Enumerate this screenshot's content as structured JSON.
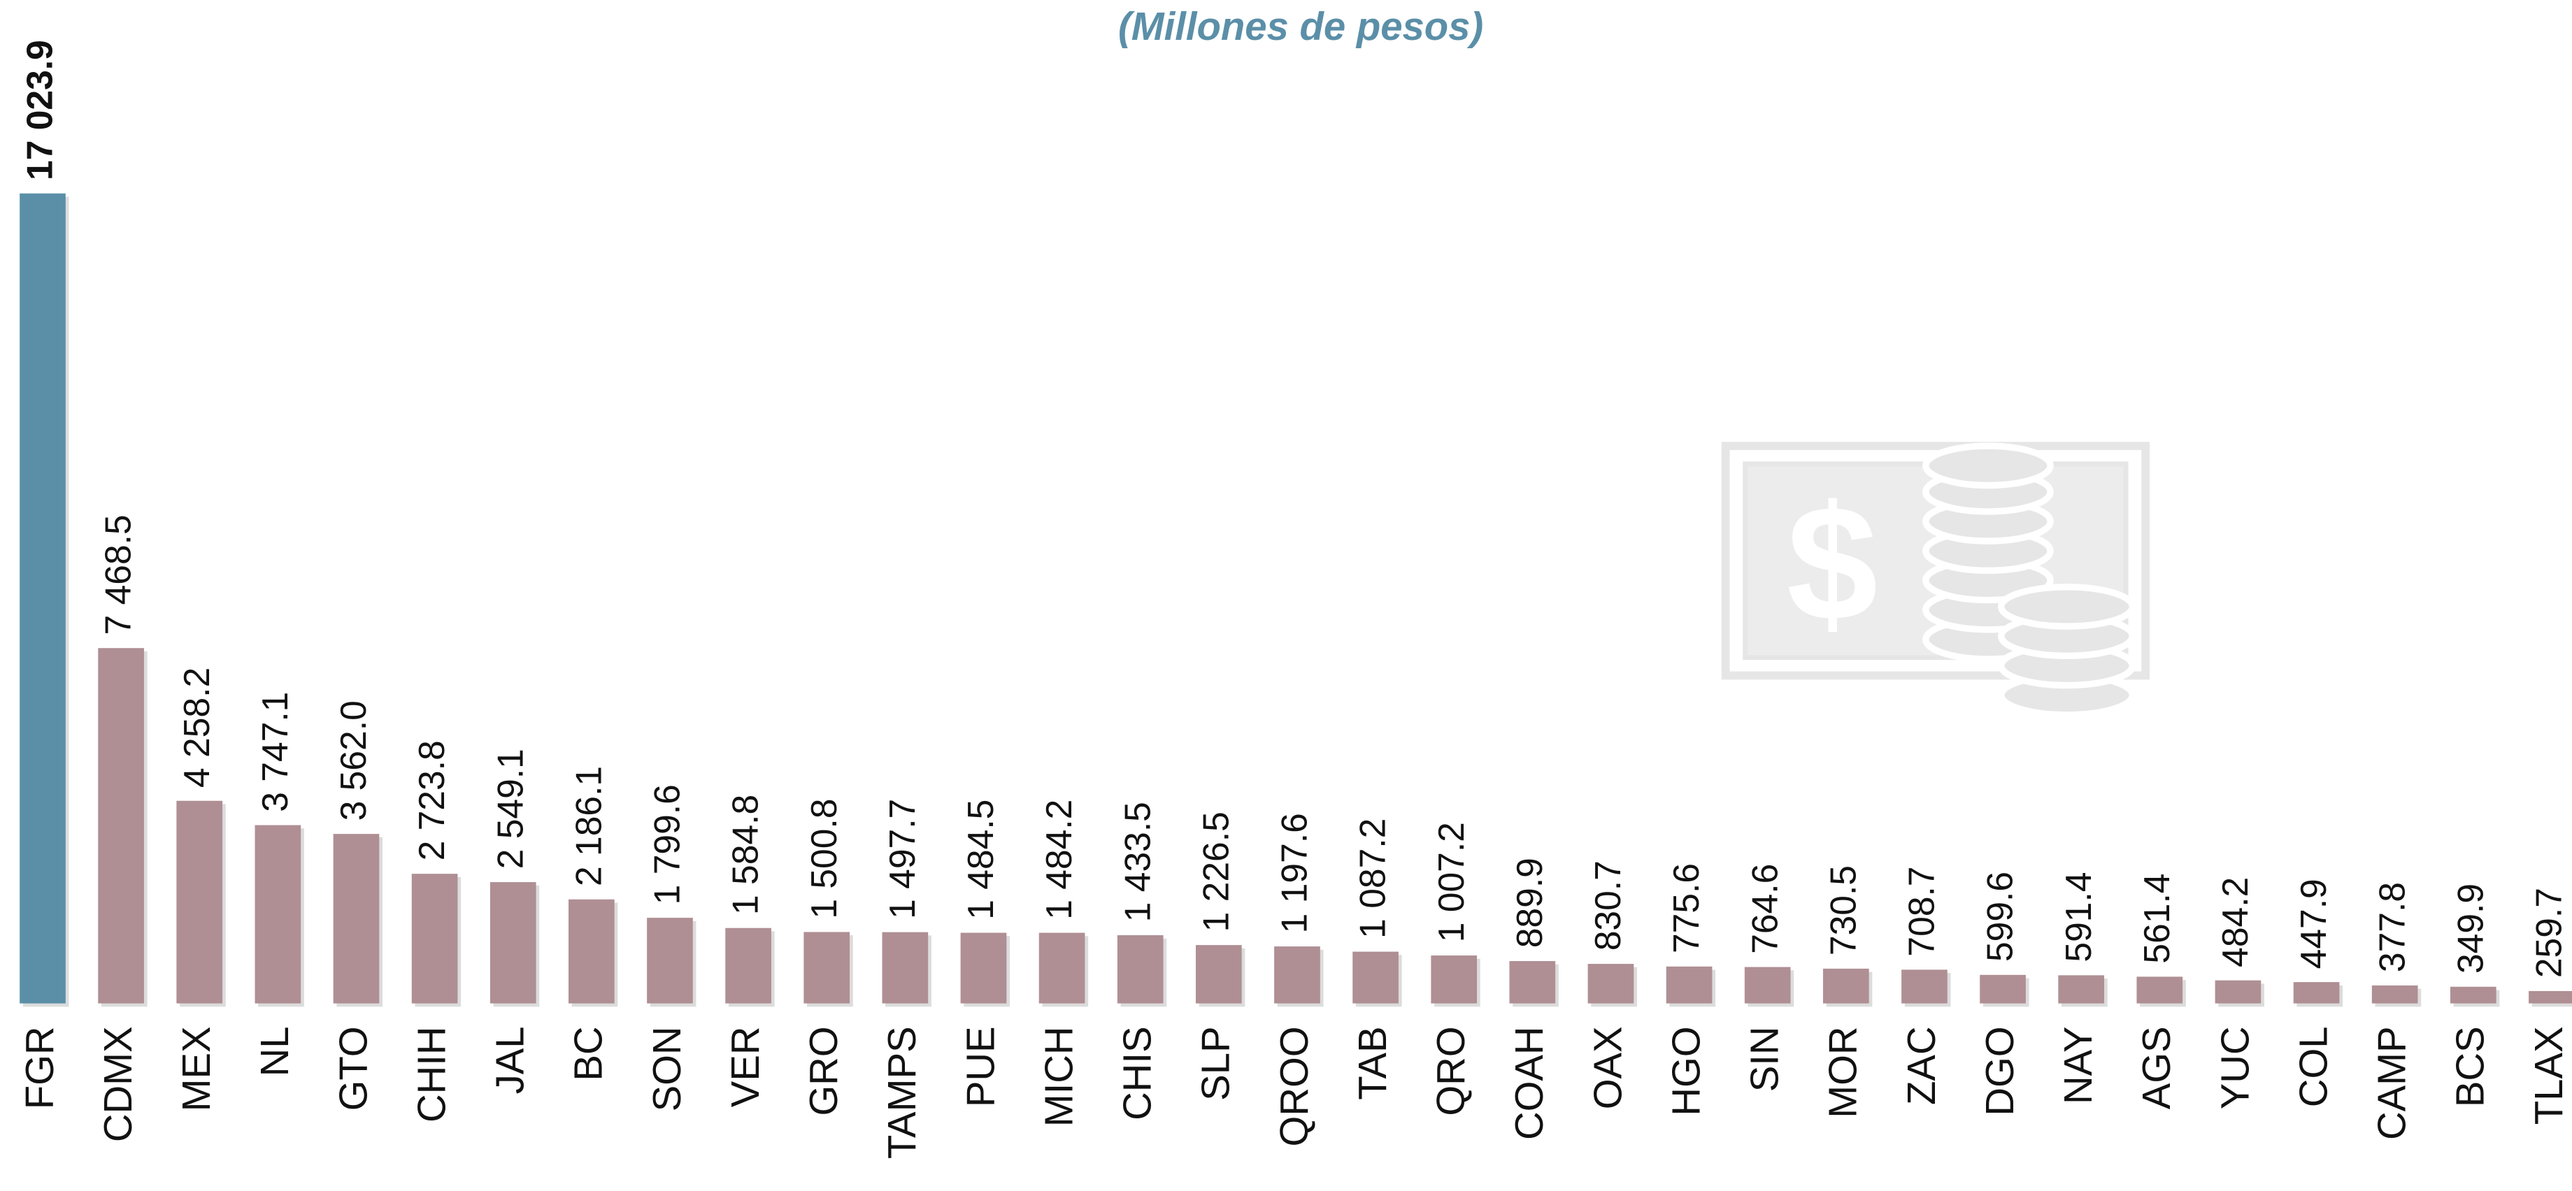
{
  "chart_data": {
    "type": "bar",
    "title": "(Millones de pesos)",
    "categories": [
      "FGR",
      "CDMX",
      "MEX",
      "NL",
      "GTO",
      "CHIH",
      "JAL",
      "BC",
      "SON",
      "VER",
      "GRO",
      "TAMPS",
      "PUE",
      "MICH",
      "CHIS",
      "SLP",
      "QROO",
      "TAB",
      "QRO",
      "COAH",
      "OAX",
      "HGO",
      "SIN",
      "MOR",
      "ZAC",
      "DGO",
      "NAY",
      "AGS",
      "YUC",
      "COL",
      "CAMP",
      "BCS",
      "TLAX"
    ],
    "values": [
      17023.9,
      7468.5,
      4258.2,
      3747.1,
      3562.0,
      2723.8,
      2549.1,
      2186.1,
      1799.6,
      1584.8,
      1500.8,
      1497.7,
      1484.5,
      1484.2,
      1433.5,
      1226.5,
      1197.6,
      1087.2,
      1007.2,
      889.9,
      830.7,
      775.6,
      764.6,
      730.5,
      708.7,
      599.6,
      591.4,
      561.4,
      484.2,
      447.9,
      377.8,
      349.9,
      259.7
    ],
    "value_labels": [
      "17 023.9",
      "7 468.5",
      "4 258.2",
      "3 747.1",
      "3 562.0",
      "2 723.8",
      "2 549.1",
      "2 186.1",
      "1 799.6",
      "1 584.8",
      "1 500.8",
      "1 497.7",
      "1 484.5",
      "1 484.2",
      "1 433.5",
      "1 226.5",
      "1 197.6",
      "1 087.2",
      "1 007.2",
      "889.9",
      "830.7",
      "775.6",
      "764.6",
      "730.5",
      "708.7",
      "599.6",
      "591.4",
      "561.4",
      "484.2",
      "447.9",
      "377.8",
      "349.9",
      "259.7"
    ],
    "colors": [
      "#5b8fa8",
      "#af8f94",
      "#af8f94",
      "#af8f94",
      "#af8f94",
      "#af8f94",
      "#af8f94",
      "#af8f94",
      "#af8f94",
      "#af8f94",
      "#af8f94",
      "#af8f94",
      "#af8f94",
      "#af8f94",
      "#af8f94",
      "#af8f94",
      "#af8f94",
      "#af8f94",
      "#af8f94",
      "#af8f94",
      "#af8f94",
      "#af8f94",
      "#af8f94",
      "#af8f94",
      "#af8f94",
      "#af8f94",
      "#af8f94",
      "#af8f94",
      "#af8f94",
      "#af8f94",
      "#af8f94",
      "#af8f94",
      "#af8f94"
    ],
    "ylim": [
      0,
      20000
    ]
  }
}
